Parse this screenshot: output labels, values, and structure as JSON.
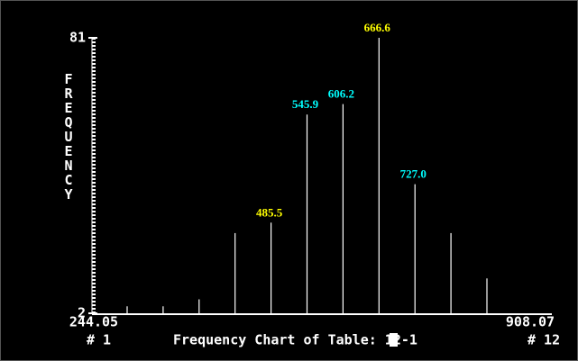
{
  "chart_data": {
    "type": "bar",
    "title": "Frequency Chart of Table: 12-1",
    "y_label": "FREQUENCY",
    "categories": [
      null,
      null,
      null,
      null,
      "485.5",
      "545.9",
      "606.2",
      "666.6",
      "727.0",
      null,
      null
    ],
    "label_colors": [
      null,
      null,
      null,
      null,
      "#ffff00",
      "#00ffff",
      "#00ffff",
      "#ffff00",
      "#00ffff",
      null,
      null
    ],
    "values": [
      4,
      4,
      6,
      25,
      28,
      59,
      62,
      81,
      39,
      25,
      12
    ],
    "color": "#ffffff",
    "ylim": [
      2,
      81
    ],
    "yticks": [
      2,
      81
    ],
    "xlim": [
      244.05,
      908.07
    ],
    "first_class_label": "# 1",
    "last_class_label": "# 12"
  }
}
